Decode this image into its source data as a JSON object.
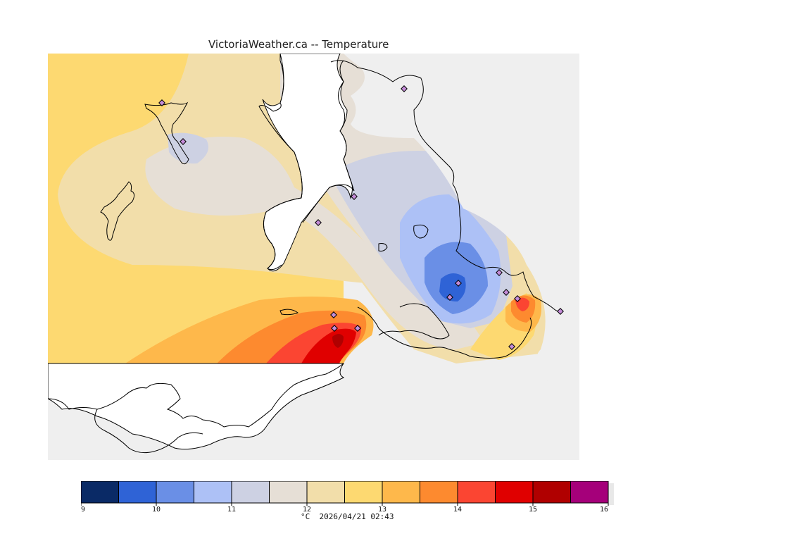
{
  "title": "VictoriaWeather.ca -- Temperature",
  "footer": {
    "unit": "°C",
    "timestamp": "2026/04/21 02:43"
  },
  "legend": {
    "ticks": [
      "9",
      "10",
      "11",
      "12",
      "13",
      "14",
      "15",
      "16"
    ],
    "bins": [
      {
        "value": 9.25,
        "color": "#0a2a66"
      },
      {
        "value": 9.75,
        "color": "#2f63d6"
      },
      {
        "value": 10.25,
        "color": "#6a8fe6"
      },
      {
        "value": 10.75,
        "color": "#adc1f6"
      },
      {
        "value": 11.25,
        "color": "#cdd1e3"
      },
      {
        "value": 11.75,
        "color": "#e6dfd6"
      },
      {
        "value": 12.25,
        "color": "#f2deaa"
      },
      {
        "value": 12.75,
        "color": "#fdd971"
      },
      {
        "value": 13.25,
        "color": "#feb84b"
      },
      {
        "value": 13.75,
        "color": "#fd8a2f"
      },
      {
        "value": 14.25,
        "color": "#fb4532"
      },
      {
        "value": 14.75,
        "color": "#e00000"
      },
      {
        "value": 15.25,
        "color": "#b00000"
      },
      {
        "value": 15.75,
        "color": "#a5007a"
      }
    ],
    "range": [
      9,
      16
    ]
  },
  "map": {
    "background_color": "#efefef",
    "water_color": "#ffffff",
    "station_marker_color": "#c48cd8"
  }
}
